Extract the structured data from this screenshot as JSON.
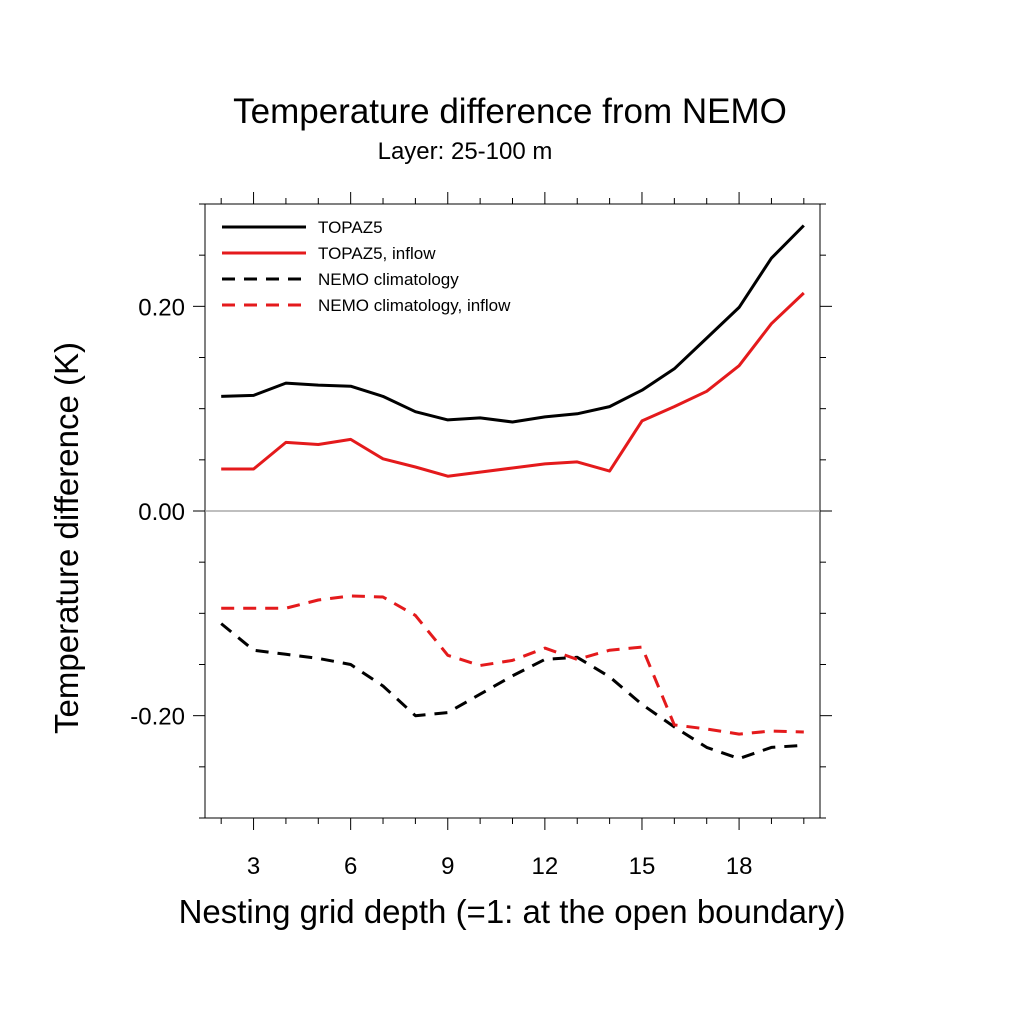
{
  "chart_data": {
    "type": "line",
    "title": "Temperature difference from NEMO",
    "subtitle": "Layer: 25-100 m",
    "xlabel": "Nesting grid depth (=1: at the open boundary)",
    "ylabel": "Temperature difference (K)",
    "xlim": [
      1.5,
      20.5
    ],
    "ylim": [
      -0.3,
      0.3
    ],
    "x_ticks": [
      3,
      6,
      9,
      12,
      15,
      18
    ],
    "x_tick_labels": [
      "3",
      "6",
      "9",
      "12",
      "15",
      "18"
    ],
    "y_ticks": [
      -0.2,
      0.0,
      0.2
    ],
    "y_tick_labels": [
      "-0.20",
      "0.00",
      "0.20"
    ],
    "zero_line": true,
    "grid": false,
    "legend_position": "top-left",
    "x": [
      2,
      3,
      4,
      5,
      6,
      7,
      8,
      9,
      10,
      11,
      12,
      13,
      14,
      15,
      16,
      17,
      18,
      19,
      20
    ],
    "series": [
      {
        "name": "TOPAZ5",
        "color": "#000000",
        "dash": "solid",
        "values": [
          0.112,
          0.113,
          0.125,
          0.123,
          0.122,
          0.112,
          0.097,
          0.089,
          0.091,
          0.087,
          0.092,
          0.095,
          0.102,
          0.118,
          0.139,
          0.169,
          0.199,
          0.247,
          0.279
        ]
      },
      {
        "name": "TOPAZ5, inflow",
        "color": "#e41a1c",
        "dash": "solid",
        "values": [
          0.041,
          0.041,
          0.067,
          0.065,
          0.07,
          0.051,
          0.043,
          0.034,
          0.038,
          0.042,
          0.046,
          0.048,
          0.039,
          0.088,
          0.102,
          0.117,
          0.142,
          0.183,
          0.213
        ]
      },
      {
        "name": "NEMO climatology",
        "color": "#000000",
        "dash": "dashed",
        "values": [
          -0.11,
          -0.136,
          -0.14,
          -0.144,
          -0.15,
          -0.171,
          -0.2,
          -0.197,
          -0.179,
          -0.161,
          -0.145,
          -0.143,
          -0.162,
          -0.189,
          -0.211,
          -0.231,
          -0.242,
          -0.231,
          -0.229
        ]
      },
      {
        "name": "NEMO climatology, inflow",
        "color": "#e41a1c",
        "dash": "dashed",
        "values": [
          -0.095,
          -0.095,
          -0.095,
          -0.087,
          -0.083,
          -0.084,
          -0.102,
          -0.141,
          -0.151,
          -0.146,
          -0.134,
          -0.145,
          -0.136,
          -0.133,
          -0.209,
          -0.213,
          -0.218,
          -0.215,
          -0.216
        ]
      }
    ]
  }
}
